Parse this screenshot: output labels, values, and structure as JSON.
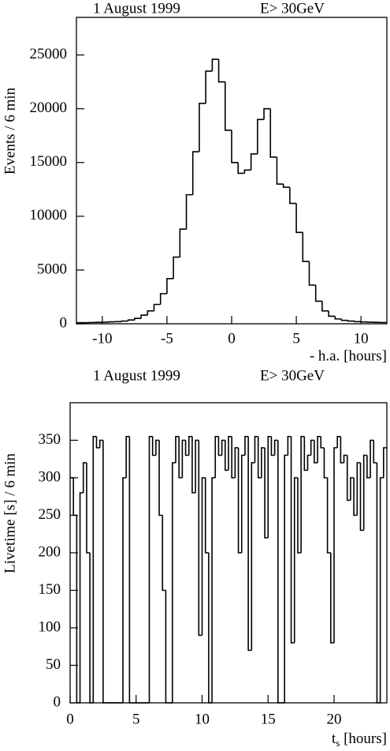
{
  "chart_data": [
    {
      "type": "histogram",
      "title": "1 August 1999",
      "subtitle": "E> 30GeV",
      "y_label": "Events / 6 min",
      "x_label": "- h.a. [hours]",
      "bins": [
        -12,
        -11.5,
        -11,
        -10.5,
        -10,
        -9.5,
        -9,
        -8.5,
        -8,
        -7.5,
        -7,
        -6.5,
        -6,
        -5.5,
        -5,
        -4.5,
        -4,
        -3.5,
        -3,
        -2.5,
        -2,
        -1.5,
        -1,
        -0.5,
        0,
        0.5,
        1,
        1.5,
        2,
        2.5,
        3,
        3.5,
        4,
        4.5,
        5,
        5.5,
        6,
        6.5,
        7,
        7.5,
        8,
        8.5,
        9,
        9.5,
        10,
        10.5,
        11,
        11.5,
        12
      ],
      "values": [
        100,
        100,
        120,
        130,
        150,
        180,
        200,
        250,
        350,
        500,
        800,
        1200,
        1800,
        2800,
        4200,
        6200,
        8800,
        12000,
        16000,
        20500,
        23500,
        24600,
        22500,
        18000,
        15000,
        14000,
        14300,
        15800,
        19000,
        20000,
        15500,
        13000,
        12700,
        11200,
        8500,
        5800,
        3600,
        2100,
        1200,
        700,
        450,
        320,
        250,
        200,
        170,
        150,
        130,
        120
      ],
      "color": "#000000",
      "xlim": [
        -12,
        12
      ],
      "xticks": [
        -10,
        -5,
        0,
        5,
        10
      ],
      "ylim": [
        0,
        28500
      ],
      "yticks": [
        0,
        5000,
        10000,
        15000,
        20000,
        25000
      ]
    },
    {
      "type": "histogram",
      "title": "1 August 1999",
      "subtitle": "E> 30GeV",
      "y_label": "Livetime [s] / 6 min",
      "x_label_parts": [
        "t",
        "s",
        " [hours]"
      ],
      "bins": [
        0,
        0.25,
        0.5,
        0.75,
        1,
        1.25,
        1.5,
        1.75,
        2,
        2.25,
        2.5,
        2.75,
        3,
        3.25,
        3.5,
        3.75,
        4,
        4.25,
        4.5,
        4.75,
        5,
        5.25,
        5.5,
        5.75,
        6,
        6.25,
        6.5,
        6.75,
        7,
        7.25,
        7.5,
        7.75,
        8,
        8.25,
        8.5,
        8.75,
        9,
        9.25,
        9.5,
        9.75,
        10,
        10.25,
        10.5,
        10.75,
        11,
        11.25,
        11.5,
        11.75,
        12,
        12.25,
        12.5,
        12.75,
        13,
        13.25,
        13.5,
        13.75,
        14,
        14.25,
        14.5,
        14.75,
        15,
        15.25,
        15.5,
        15.75,
        16,
        16.25,
        16.5,
        16.75,
        17,
        17.25,
        17.5,
        17.75,
        18,
        18.25,
        18.5,
        18.75,
        19,
        19.25,
        19.5,
        19.75,
        20,
        20.25,
        20.5,
        20.75,
        21,
        21.25,
        21.5,
        21.75,
        22,
        22.25,
        22.5,
        22.75,
        23,
        23.25,
        23.5,
        23.75,
        24
      ],
      "values": [
        300,
        250,
        0,
        280,
        320,
        200,
        0,
        355,
        340,
        350,
        0,
        0,
        0,
        0,
        0,
        0,
        300,
        355,
        0,
        0,
        0,
        0,
        0,
        0,
        355,
        330,
        350,
        250,
        150,
        0,
        0,
        320,
        355,
        300,
        350,
        330,
        355,
        280,
        350,
        90,
        300,
        200,
        0,
        300,
        355,
        330,
        350,
        310,
        355,
        300,
        340,
        200,
        330,
        355,
        70,
        320,
        355,
        300,
        340,
        220,
        355,
        330,
        350,
        0,
        0,
        330,
        355,
        80,
        300,
        200,
        355,
        310,
        330,
        350,
        320,
        355,
        340,
        300,
        200,
        80,
        340,
        355,
        320,
        330,
        270,
        300,
        250,
        320,
        230,
        330,
        300,
        350,
        320,
        0,
        300,
        340
      ],
      "color": "#000000",
      "xlim": [
        0,
        24
      ],
      "xticks": [
        0,
        5,
        10,
        15,
        20
      ],
      "ylim": [
        0,
        400
      ],
      "yticks": [
        0,
        50,
        100,
        150,
        200,
        250,
        300,
        350
      ]
    }
  ]
}
